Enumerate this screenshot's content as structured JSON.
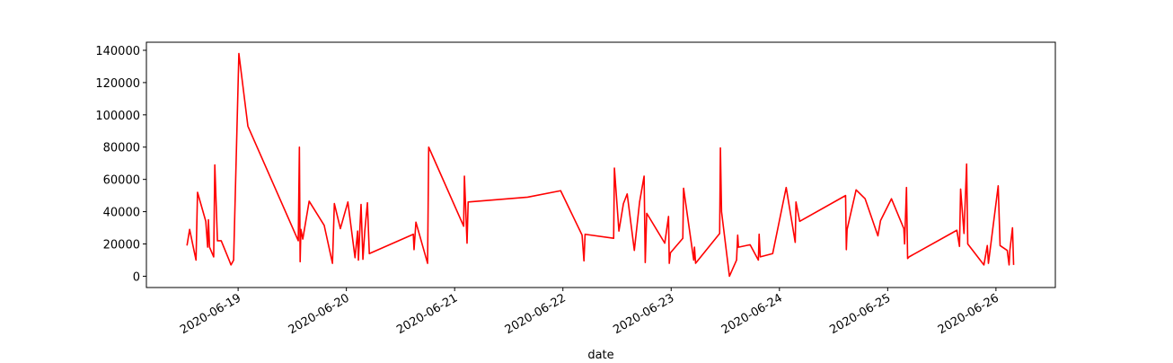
{
  "chart_data": {
    "type": "line",
    "x_label": "date",
    "color": "#ff0000",
    "x": [
      "2020-06-18 12:40",
      "2020-06-18 13:15",
      "2020-06-18 14:15",
      "2020-06-18 14:40",
      "2020-06-18 15:00",
      "2020-06-18 16:50",
      "2020-06-18 17:15",
      "2020-06-18 17:25",
      "2020-06-18 17:40",
      "2020-06-18 18:35",
      "2020-06-18 18:50",
      "2020-06-18 19:25",
      "2020-06-18 20:15",
      "2020-06-18 22:00",
      "2020-06-18 22:25",
      "2020-06-18 23:00",
      "2020-06-19 00:10",
      "2020-06-19 02:10",
      "2020-06-19 13:20",
      "2020-06-19 13:35",
      "2020-06-19 13:45",
      "2020-06-19 13:55",
      "2020-06-19 14:20",
      "2020-06-19 15:45",
      "2020-06-19 19:05",
      "2020-06-19 20:55",
      "2020-06-19 21:20",
      "2020-06-19 22:40",
      "2020-06-20 00:20",
      "2020-06-20 01:55",
      "2020-06-20 02:30",
      "2020-06-20 02:40",
      "2020-06-20 03:15",
      "2020-06-20 03:40",
      "2020-06-20 04:05",
      "2020-06-20 04:40",
      "2020-06-20 05:05",
      "2020-06-20 14:50",
      "2020-06-20 15:00",
      "2020-06-20 15:25",
      "2020-06-20 18:00",
      "2020-06-20 18:15",
      "2020-06-21 02:00",
      "2020-06-21 02:10",
      "2020-06-21 02:45",
      "2020-06-21 03:00",
      "2020-06-21 16:10",
      "2020-06-21 23:30",
      "2020-06-22 04:15",
      "2020-06-22 04:40",
      "2020-06-22 04:55",
      "2020-06-22 11:15",
      "2020-06-22 11:25",
      "2020-06-22 12:25",
      "2020-06-22 13:25",
      "2020-06-22 14:15",
      "2020-06-22 15:50",
      "2020-06-22 17:00",
      "2020-06-22 18:00",
      "2020-06-22 18:15",
      "2020-06-22 18:35",
      "2020-06-22 22:35",
      "2020-06-22 23:25",
      "2020-06-22 23:35",
      "2020-06-22 23:50",
      "2020-06-23 02:35",
      "2020-06-23 02:45",
      "2020-06-23 05:00",
      "2020-06-23 05:10",
      "2020-06-23 05:25",
      "2020-06-23 10:45",
      "2020-06-23 10:55",
      "2020-06-23 11:10",
      "2020-06-23 12:55",
      "2020-06-23 14:30",
      "2020-06-23 14:45",
      "2020-06-23 14:55",
      "2020-06-23 17:30",
      "2020-06-23 19:20",
      "2020-06-23 19:30",
      "2020-06-23 19:45",
      "2020-06-23 22:30",
      "2020-06-24 01:30",
      "2020-06-24 03:30",
      "2020-06-24 03:40",
      "2020-06-24 04:30",
      "2020-06-24 14:40",
      "2020-06-24 14:50",
      "2020-06-24 15:00",
      "2020-06-24 17:00",
      "2020-06-24 19:00",
      "2020-06-24 21:50",
      "2020-06-24 22:25",
      "2020-06-25 00:50",
      "2020-06-25 03:35",
      "2020-06-25 03:45",
      "2020-06-25 04:10",
      "2020-06-25 04:25",
      "2020-06-25 04:45",
      "2020-06-25 15:20",
      "2020-06-25 15:55",
      "2020-06-25 16:10",
      "2020-06-25 16:55",
      "2020-06-25 17:30",
      "2020-06-25 17:45",
      "2020-06-25 21:20",
      "2020-06-25 22:05",
      "2020-06-25 22:20",
      "2020-06-26 00:30",
      "2020-06-26 00:55",
      "2020-06-26 02:30",
      "2020-06-26 02:55",
      "2020-06-26 03:05",
      "2020-06-26 03:40",
      "2020-06-26 03:55"
    ],
    "values": [
      19000,
      29000,
      15500,
      10000,
      52000,
      34000,
      18000,
      35000,
      18000,
      12000,
      69000,
      22000,
      22000,
      10000,
      7000,
      10000,
      138000,
      93000,
      22000,
      80000,
      9000,
      29000,
      23000,
      46500,
      31500,
      8000,
      45000,
      29500,
      46000,
      11500,
      28000,
      10000,
      44500,
      10500,
      28000,
      45500,
      14000,
      26000,
      16500,
      33500,
      8000,
      80000,
      31000,
      62000,
      20500,
      46000,
      49000,
      53000,
      25500,
      9500,
      26000,
      23500,
      67000,
      28000,
      45000,
      51000,
      16000,
      46000,
      62000,
      8500,
      39000,
      20500,
      37000,
      8000,
      14500,
      23500,
      54500,
      10000,
      18000,
      8000,
      26500,
      79500,
      40000,
      0,
      10000,
      25500,
      18000,
      19500,
      10000,
      26000,
      12000,
      14000,
      55000,
      21000,
      46000,
      34000,
      50000,
      16500,
      29000,
      53500,
      48000,
      25000,
      34500,
      48000,
      29500,
      20000,
      55000,
      11000,
      12000,
      28500,
      18500,
      54000,
      26500,
      69500,
      20000,
      7000,
      19000,
      8000,
      56000,
      19000,
      16000,
      7000,
      16000,
      30000,
      7000
    ],
    "xlim": [
      "2020-06-18 03:40",
      "2020-06-26 13:10"
    ],
    "xticks": [
      "2020-06-19",
      "2020-06-20",
      "2020-06-21",
      "2020-06-22",
      "2020-06-23",
      "2020-06-24",
      "2020-06-25",
      "2020-06-26"
    ],
    "ylim": [
      -7000,
      145000
    ],
    "yticks": [
      0,
      20000,
      40000,
      60000,
      80000,
      100000,
      120000,
      140000
    ],
    "grid": false
  }
}
